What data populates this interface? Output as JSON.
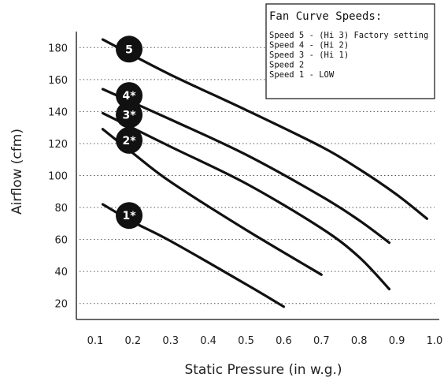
{
  "chart_data": {
    "type": "line",
    "xlabel": "Static Pressure (in w.g.)",
    "ylabel": "Airflow (cfm)",
    "xlim": [
      0.05,
      1.0
    ],
    "ylim": [
      10,
      190
    ],
    "x_ticks": [
      0.1,
      0.2,
      0.3,
      0.4,
      0.5,
      0.6,
      0.7,
      0.8,
      0.9,
      1.0
    ],
    "x_tick_labels": [
      "0.1",
      "0.2",
      "0.3",
      "0.4",
      "0.5",
      "0.6",
      "0.7",
      "0.8",
      "0.9",
      "1.0"
    ],
    "y_ticks": [
      20,
      40,
      60,
      80,
      100,
      120,
      140,
      160,
      180
    ],
    "y_tick_labels": [
      "20",
      "40",
      "60",
      "80",
      "100",
      "120",
      "140",
      "160",
      "180"
    ],
    "grid": "horizontal-dotted",
    "legend": {
      "title": "Fan Curve Speeds:",
      "items": [
        "Speed 5 - (Hi 3) Factory setting",
        "Speed 4 - (Hi 2)",
        "Speed 3 - (Hi 1)",
        "Speed 2",
        "Speed 1 - LOW"
      ],
      "placement": "top-right"
    },
    "series": [
      {
        "badge": "5",
        "points": [
          [
            0.12,
            185
          ],
          [
            0.3,
            163
          ],
          [
            0.5,
            141
          ],
          [
            0.7,
            118
          ],
          [
            0.8,
            104
          ],
          [
            0.9,
            88
          ],
          [
            0.98,
            73
          ]
        ]
      },
      {
        "badge": "4*",
        "points": [
          [
            0.12,
            154
          ],
          [
            0.3,
            135
          ],
          [
            0.5,
            113
          ],
          [
            0.7,
            87
          ],
          [
            0.8,
            72
          ],
          [
            0.88,
            58
          ]
        ]
      },
      {
        "badge": "3*",
        "points": [
          [
            0.12,
            139
          ],
          [
            0.3,
            118
          ],
          [
            0.5,
            95
          ],
          [
            0.7,
            67
          ],
          [
            0.8,
            49
          ],
          [
            0.88,
            29
          ]
        ]
      },
      {
        "badge": "2*",
        "points": [
          [
            0.12,
            129
          ],
          [
            0.2,
            114
          ],
          [
            0.3,
            96
          ],
          [
            0.5,
            66
          ],
          [
            0.7,
            38
          ]
        ]
      },
      {
        "badge": "1*",
        "points": [
          [
            0.12,
            82
          ],
          [
            0.2,
            71
          ],
          [
            0.3,
            59
          ],
          [
            0.5,
            32
          ],
          [
            0.6,
            18
          ]
        ]
      }
    ],
    "badge_positions": [
      {
        "badge": "5",
        "x": 0.19,
        "y": 179
      },
      {
        "badge": "4*",
        "x": 0.19,
        "y": 150
      },
      {
        "badge": "3*",
        "x": 0.19,
        "y": 138
      },
      {
        "badge": "2*",
        "x": 0.19,
        "y": 122
      },
      {
        "badge": "1*",
        "x": 0.19,
        "y": 75
      }
    ]
  },
  "colors": {
    "line": "#111111",
    "badge_fill": "#111111",
    "badge_text": "#ffffff",
    "grid": "#555555",
    "background": "#ffffff"
  }
}
